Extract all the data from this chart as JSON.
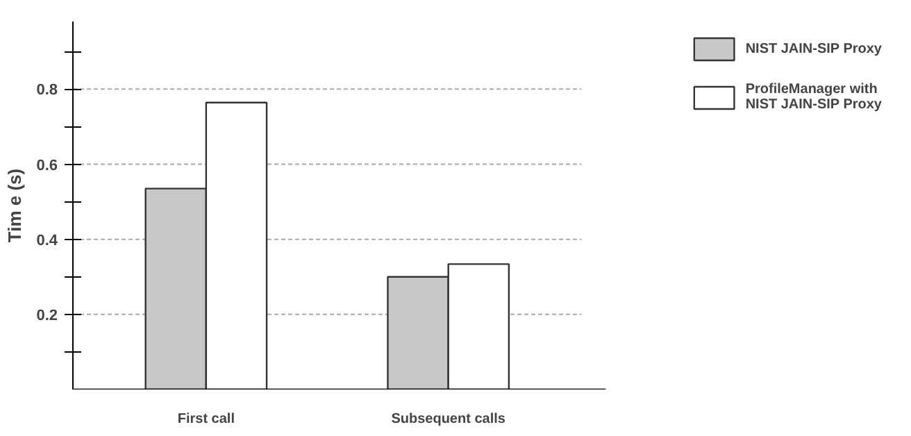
{
  "chart_data": {
    "type": "bar",
    "ylabel": "Tim e (s)",
    "categories": [
      "First call",
      "Subsequent calls"
    ],
    "series": [
      {
        "name": "NIST JAIN-SIP Proxy",
        "color": "#c8c8c8",
        "values": [
          0.535,
          0.3
        ]
      },
      {
        "name": "ProfileManager with NIST JAIN-SIP Proxy",
        "color": "#ffffff",
        "values": [
          0.764,
          0.334
        ]
      }
    ],
    "ylim": [
      0,
      0.98
    ],
    "yticks": [
      {
        "value": 0.1,
        "label": null
      },
      0.2,
      {
        "value": 0.3,
        "label": null
      },
      0.4,
      {
        "value": 0.5,
        "label": null
      },
      0.6,
      {
        "value": 0.7,
        "label": null
      },
      0.8,
      {
        "value": 0.9,
        "label": null
      }
    ],
    "grid": "y",
    "legend": "right"
  }
}
